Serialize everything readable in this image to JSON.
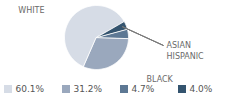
{
  "chart_data": {
    "type": "pie",
    "categories": [
      "WHITE",
      "BLACK",
      "HISPANIC",
      "ASIAN"
    ],
    "values": [
      60.1,
      31.2,
      4.7,
      4.0
    ],
    "value_labels": [
      "60.1%",
      "31.2%",
      "4.7%",
      "4.0%"
    ],
    "colors": [
      "#d6dce6",
      "#9aa8bd",
      "#5d7894",
      "#34546f"
    ],
    "legend": "bottom"
  }
}
